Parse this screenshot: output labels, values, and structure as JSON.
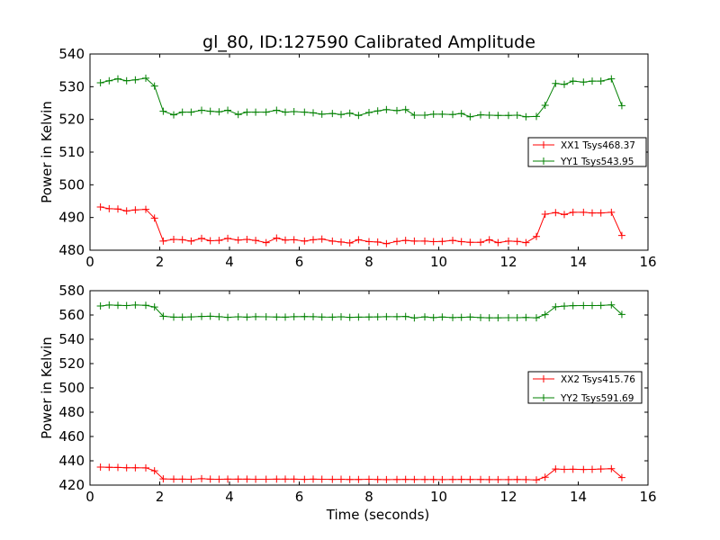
{
  "figure": {
    "title": "gl_80, ID:127590 Calibrated Amplitude"
  },
  "chart_data": [
    {
      "type": "line",
      "title": "gl_80, ID:127590 Calibrated Amplitude",
      "xlabel": "",
      "ylabel": "Power in Kelvin",
      "xlim": [
        0,
        16
      ],
      "ylim": [
        480,
        540
      ],
      "xticks": [
        "0",
        "2",
        "4",
        "6",
        "8",
        "10",
        "12",
        "14",
        "16"
      ],
      "yticks": [
        "480",
        "490",
        "500",
        "510",
        "520",
        "530",
        "540"
      ],
      "grid": false,
      "legend": "right",
      "x": [
        0.3,
        0.55,
        0.8,
        1.05,
        1.3,
        1.6,
        1.85,
        2.1,
        2.4,
        2.65,
        2.9,
        3.2,
        3.45,
        3.7,
        3.95,
        4.25,
        4.5,
        4.75,
        5.05,
        5.35,
        5.6,
        5.85,
        6.15,
        6.4,
        6.65,
        6.95,
        7.2,
        7.45,
        7.7,
        8.0,
        8.25,
        8.5,
        8.8,
        9.05,
        9.3,
        9.6,
        9.85,
        10.1,
        10.4,
        10.65,
        10.9,
        11.2,
        11.45,
        11.7,
        12.0,
        12.25,
        12.5,
        12.8,
        13.05,
        13.35,
        13.6,
        13.85,
        14.15,
        14.4,
        14.65,
        14.95,
        15.25
      ],
      "series": [
        {
          "name": "XX1 Tsys468.37",
          "color": "#ff0000",
          "values": [
            493.2,
            492.7,
            492.6,
            492.0,
            492.3,
            492.5,
            489.8,
            482.8,
            483.3,
            483.2,
            482.8,
            483.6,
            482.9,
            483.0,
            483.6,
            483.1,
            483.3,
            483.0,
            482.3,
            483.7,
            483.1,
            483.2,
            482.8,
            483.2,
            483.4,
            482.8,
            482.5,
            482.2,
            483.2,
            482.6,
            482.5,
            482.0,
            482.7,
            483.0,
            482.8,
            482.8,
            482.6,
            482.7,
            483.0,
            482.6,
            482.4,
            482.4,
            483.2,
            482.3,
            482.8,
            482.7,
            482.3,
            484.2,
            491.0,
            491.5,
            490.9,
            491.6,
            491.6,
            491.4,
            491.4,
            491.6,
            484.5
          ]
        },
        {
          "name": "YY1 Tsys543.95",
          "color": "#008000",
          "values": [
            531.2,
            531.8,
            532.4,
            531.8,
            532.1,
            532.6,
            530.2,
            522.5,
            521.4,
            522.2,
            522.2,
            522.8,
            522.5,
            522.3,
            522.8,
            521.5,
            522.2,
            522.2,
            522.2,
            522.8,
            522.2,
            522.4,
            522.2,
            522.0,
            521.6,
            521.8,
            521.5,
            521.9,
            521.2,
            522.1,
            522.6,
            523.0,
            522.7,
            523.0,
            521.3,
            521.3,
            521.6,
            521.6,
            521.5,
            521.8,
            520.8,
            521.4,
            521.3,
            521.2,
            521.2,
            521.3,
            520.8,
            520.9,
            524.3,
            531.0,
            530.7,
            531.7,
            531.4,
            531.7,
            531.7,
            532.4,
            524.2
          ]
        }
      ]
    },
    {
      "type": "line",
      "title": "",
      "xlabel": "Time (seconds)",
      "ylabel": "Power in Kelvin",
      "xlim": [
        0,
        16
      ],
      "ylim": [
        420,
        580
      ],
      "xticks": [
        "0",
        "2",
        "4",
        "6",
        "8",
        "10",
        "12",
        "14",
        "16"
      ],
      "yticks": [
        "420",
        "440",
        "460",
        "480",
        "500",
        "520",
        "540",
        "560",
        "580"
      ],
      "grid": false,
      "legend": "right",
      "x": [
        0.3,
        0.55,
        0.8,
        1.05,
        1.3,
        1.6,
        1.85,
        2.1,
        2.4,
        2.65,
        2.9,
        3.2,
        3.45,
        3.7,
        3.95,
        4.25,
        4.5,
        4.75,
        5.05,
        5.35,
        5.6,
        5.85,
        6.15,
        6.4,
        6.65,
        6.95,
        7.2,
        7.45,
        7.7,
        8.0,
        8.25,
        8.5,
        8.8,
        9.05,
        9.3,
        9.6,
        9.85,
        10.1,
        10.4,
        10.65,
        10.9,
        11.2,
        11.45,
        11.7,
        12.0,
        12.25,
        12.5,
        12.8,
        13.05,
        13.35,
        13.6,
        13.85,
        14.15,
        14.4,
        14.65,
        14.95,
        15.25
      ],
      "series": [
        {
          "name": "XX2 Tsys415.76",
          "color": "#ff0000",
          "values": [
            434.8,
            434.6,
            434.5,
            434.3,
            434.3,
            434.2,
            431.8,
            425.1,
            424.9,
            424.9,
            424.8,
            425.3,
            424.9,
            424.8,
            424.9,
            424.9,
            424.9,
            424.8,
            424.8,
            424.9,
            424.9,
            424.9,
            424.7,
            424.9,
            424.8,
            424.7,
            424.8,
            424.6,
            424.6,
            424.8,
            424.6,
            424.5,
            424.6,
            424.7,
            424.6,
            424.6,
            424.6,
            424.5,
            424.6,
            424.7,
            424.6,
            424.6,
            424.5,
            424.5,
            424.5,
            424.6,
            424.5,
            424.3,
            426.5,
            433.2,
            433.0,
            433.1,
            432.9,
            433.0,
            433.2,
            433.5,
            426.2
          ]
        },
        {
          "name": "YY2 Tsys591.69",
          "color": "#008000",
          "values": [
            567.4,
            568.2,
            568.0,
            567.8,
            568.2,
            568.0,
            566.6,
            559.0,
            558.2,
            558.2,
            558.4,
            558.8,
            559.0,
            558.6,
            558.1,
            558.5,
            558.2,
            558.6,
            558.5,
            558.3,
            558.2,
            558.6,
            558.7,
            558.6,
            558.3,
            558.2,
            558.5,
            558.1,
            558.2,
            558.3,
            558.4,
            558.6,
            558.6,
            558.8,
            557.6,
            558.4,
            557.9,
            558.3,
            557.9,
            558.1,
            558.3,
            557.9,
            557.7,
            557.7,
            557.8,
            557.8,
            558.0,
            557.7,
            560.3,
            566.8,
            567.3,
            567.7,
            567.8,
            567.8,
            567.9,
            568.3,
            560.5
          ]
        }
      ]
    }
  ]
}
